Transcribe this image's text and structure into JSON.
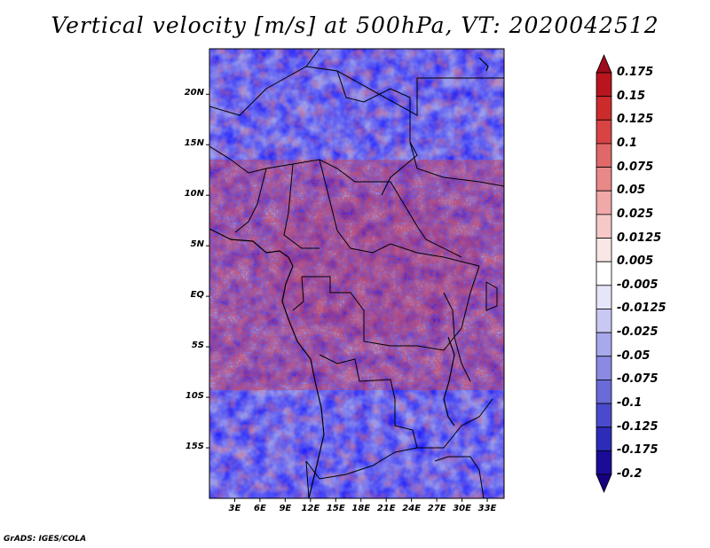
{
  "title": "Vertical velocity [m/s] at 500hPa, VT: 2020042512",
  "credit": "GrADS: IGES/COLA",
  "map": {
    "lat_labels": [
      "20N",
      "15N",
      "10N",
      "5N",
      "EQ",
      "5S",
      "10S",
      "15S"
    ],
    "lat_values": [
      20,
      15,
      10,
      5,
      0,
      -5,
      -10,
      -15
    ],
    "lon_labels": [
      "3E",
      "6E",
      "9E",
      "12E",
      "15E",
      "18E",
      "21E",
      "24E",
      "27E",
      "30E",
      "33E"
    ],
    "lon_values": [
      3,
      6,
      9,
      12,
      15,
      18,
      21,
      24,
      27,
      30,
      33
    ],
    "lat_range": [
      -20,
      24.5
    ],
    "lon_range": [
      0,
      35
    ]
  },
  "colorbar": {
    "labels": [
      "0.175",
      "0.15",
      "0.125",
      "0.1",
      "0.075",
      "0.05",
      "0.025",
      "0.0125",
      "0.005",
      "-0.005",
      "-0.0125",
      "-0.025",
      "-0.05",
      "-0.075",
      "-0.1",
      "-0.125",
      "-0.175",
      "-0.2"
    ],
    "colors": [
      "#9e0a1e",
      "#b8151f",
      "#cc2b2b",
      "#d84444",
      "#e06868",
      "#e88888",
      "#f0a8a8",
      "#f6c8c8",
      "#fbe6e6",
      "#ffffff",
      "#e6e6fb",
      "#c8c8f2",
      "#a8a8ec",
      "#8a8ae4",
      "#6a6ad8",
      "#4a4acc",
      "#2c2cb8",
      "#1a0c96",
      "#160080"
    ]
  }
}
